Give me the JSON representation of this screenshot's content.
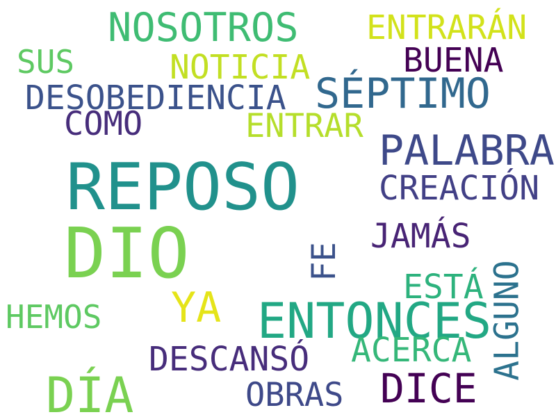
{
  "words": {
    "nosotros": {
      "text": "NOSOTROS",
      "color": "#3fbc73"
    },
    "entraran": {
      "text": "ENTRARÁN",
      "color": "#d2e21b"
    },
    "sus": {
      "text": "SUS",
      "color": "#5ec962"
    },
    "noticia": {
      "text": "NOTICIA",
      "color": "#c2df23"
    },
    "buena": {
      "text": "BUENA",
      "color": "#440154"
    },
    "desobediencia": {
      "text": "DESOBEDIENCIA",
      "color": "#3b528b"
    },
    "septimo": {
      "text": "SÉPTIMO",
      "color": "#31688e"
    },
    "como": {
      "text": "COMO",
      "color": "#472d7b"
    },
    "entrar": {
      "text": "ENTRAR",
      "color": "#b5de2b"
    },
    "palabra": {
      "text": "PALABRA",
      "color": "#3e4989"
    },
    "reposo": {
      "text": "REPOSO",
      "color": "#21918c"
    },
    "creacion": {
      "text": "CREACIÓN",
      "color": "#424086"
    },
    "dio": {
      "text": "DIO",
      "color": "#7ad151"
    },
    "jamas": {
      "text": "JAMÁS",
      "color": "#482475"
    },
    "fe": {
      "text": "FE",
      "color": "#3b528b"
    },
    "esta": {
      "text": "ESTÁ",
      "color": "#2db27d"
    },
    "alguno": {
      "text": "ALGUNO",
      "color": "#2c728e"
    },
    "hemos": {
      "text": "HEMOS",
      "color": "#5ec962"
    },
    "ya": {
      "text": "YA",
      "color": "#e5e419"
    },
    "entonces": {
      "text": "ENTONCES",
      "color": "#22a884"
    },
    "acerca": {
      "text": "ACERCA",
      "color": "#35b779"
    },
    "descanso": {
      "text": "DESCANSÓ",
      "color": "#472d7b"
    },
    "dice": {
      "text": "DICE",
      "color": "#440154"
    },
    "dia": {
      "text": "DÍA",
      "color": "#7ad151"
    },
    "obras": {
      "text": "OBRAS",
      "color": "#3e4989"
    }
  }
}
